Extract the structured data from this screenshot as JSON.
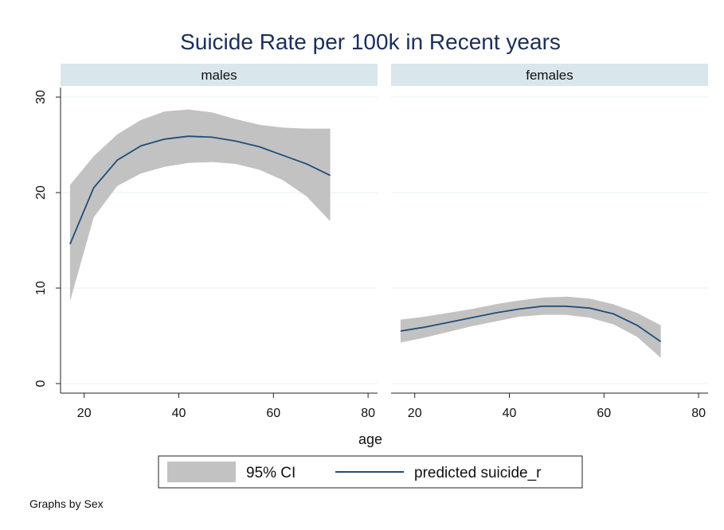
{
  "chart_data": {
    "type": "line",
    "title": "Suicide Rate per 100k in Recent years",
    "xlabel": "age",
    "ylabel": "",
    "xlim": [
      15,
      82
    ],
    "ylim": [
      -1,
      31
    ],
    "x_ticks": [
      20,
      40,
      60,
      80
    ],
    "y_ticks": [
      0,
      10,
      20,
      30
    ],
    "grid": true,
    "legend": {
      "position": "bottom",
      "entries": [
        {
          "label": "95% CI",
          "kind": "band",
          "color": "#c2c2c2"
        },
        {
          "label": "predicted suicide_r",
          "kind": "line",
          "color": "#1f4e79"
        }
      ]
    },
    "note": "Graphs by Sex",
    "colors": {
      "band": "#c2c2c2",
      "line": "#1f4e79",
      "strip": "#d9e6ec",
      "grid": "#eaf0f2"
    },
    "panels": [
      {
        "label": "males",
        "x": [
          17,
          22,
          27,
          32,
          37,
          42,
          47,
          52,
          57,
          62,
          67,
          72
        ],
        "predicted": [
          14.6,
          20.5,
          23.4,
          24.9,
          25.6,
          25.9,
          25.8,
          25.4,
          24.8,
          23.9,
          23.0,
          21.8
        ],
        "ci_lower": [
          8.6,
          17.4,
          20.7,
          22.0,
          22.7,
          23.1,
          23.2,
          23.0,
          22.4,
          21.3,
          19.6,
          17.0
        ],
        "ci_upper": [
          20.8,
          23.8,
          26.1,
          27.6,
          28.5,
          28.7,
          28.4,
          27.7,
          27.1,
          26.8,
          26.7,
          26.7
        ]
      },
      {
        "label": "females",
        "x": [
          17,
          22,
          27,
          32,
          37,
          42,
          47,
          52,
          57,
          62,
          67,
          72
        ],
        "predicted": [
          5.5,
          5.9,
          6.4,
          6.9,
          7.4,
          7.8,
          8.1,
          8.1,
          7.9,
          7.3,
          6.1,
          4.4
        ],
        "ci_lower": [
          4.3,
          4.8,
          5.4,
          6.0,
          6.5,
          7.0,
          7.2,
          7.2,
          6.9,
          6.2,
          4.9,
          2.7
        ],
        "ci_upper": [
          6.7,
          7.0,
          7.4,
          7.8,
          8.3,
          8.7,
          9.0,
          9.1,
          8.9,
          8.3,
          7.4,
          6.1
        ]
      }
    ]
  }
}
